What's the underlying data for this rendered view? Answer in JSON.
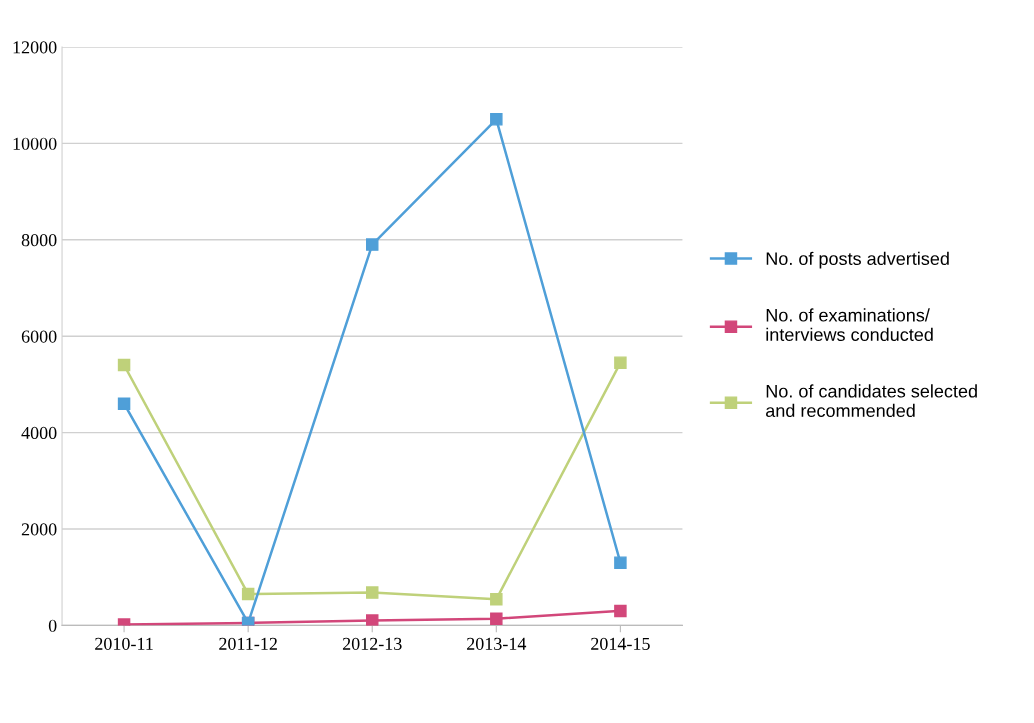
{
  "chart_data": {
    "type": "line",
    "categories": [
      "2010-11",
      "2011-12",
      "2012-13",
      "2013-14",
      "2014-15"
    ],
    "series": [
      {
        "name": "No. of posts advertised",
        "color": "#4f9fd8",
        "values": [
          4600,
          50,
          7900,
          10500,
          1300
        ]
      },
      {
        "name": "No. of examinations/\ninterviews conducted",
        "color": "#d2477a",
        "values": [
          20,
          50,
          100,
          140,
          300
        ]
      },
      {
        "name": "No. of candidates selected\nand recommended",
        "color": "#bfd17a",
        "values": [
          5400,
          650,
          680,
          540,
          5450
        ]
      }
    ],
    "ylim": [
      0,
      12000
    ],
    "yticks": [
      0,
      2000,
      4000,
      6000,
      8000,
      10000,
      12000
    ],
    "grid": "y",
    "legend": "right",
    "marker": "square",
    "line_style": "solid"
  }
}
